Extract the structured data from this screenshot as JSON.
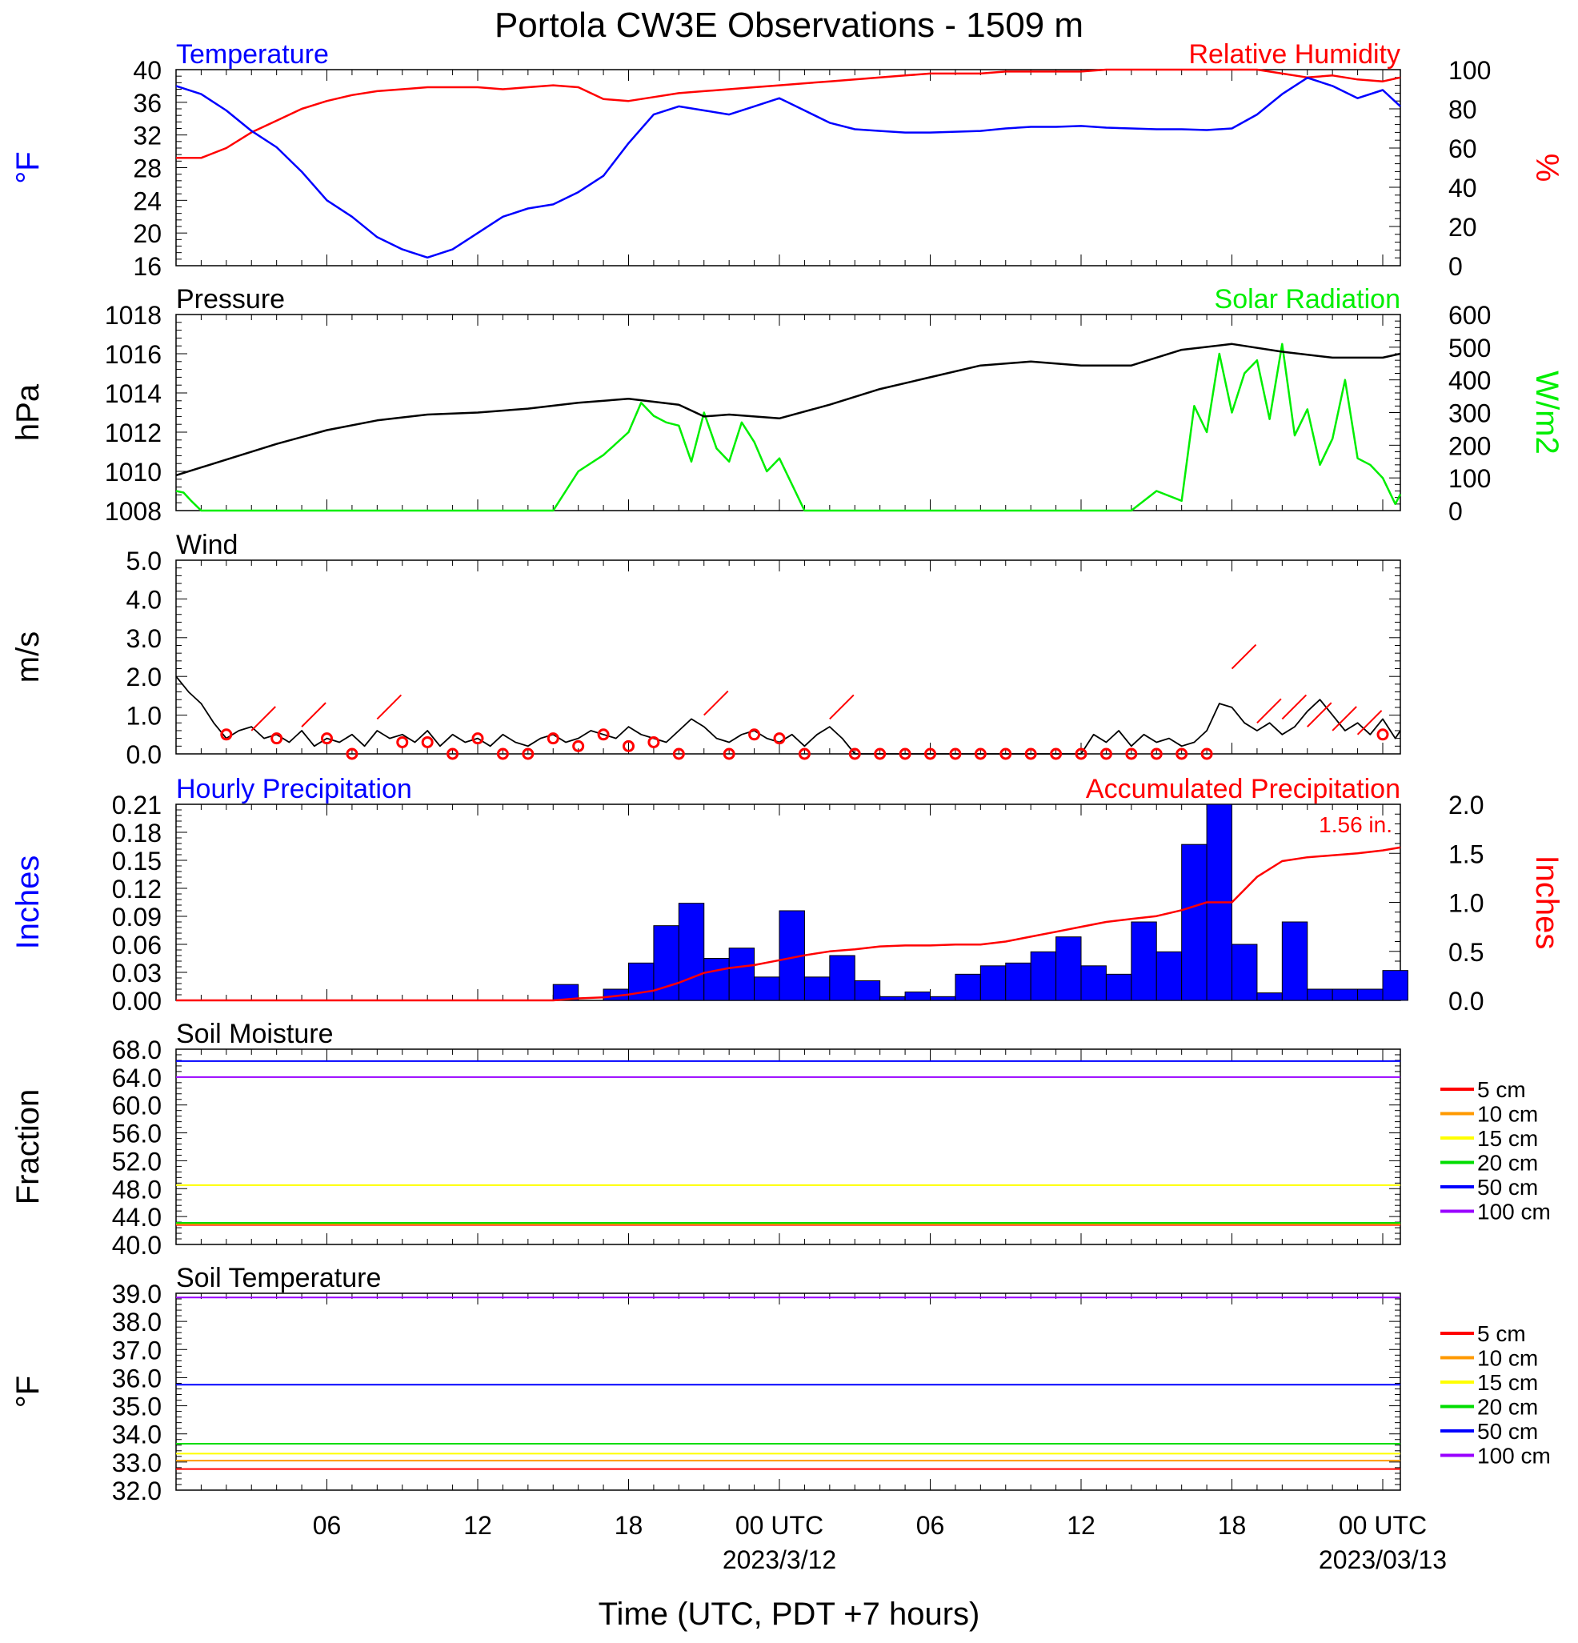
{
  "page": {
    "title": "Portola CW3E Observations - 1509 m",
    "xlabel": "Time (UTC, PDT +7 hours)",
    "x_ticks": [
      {
        "hour": 6,
        "label": "06"
      },
      {
        "hour": 12,
        "label": "12"
      },
      {
        "hour": 18,
        "label": "18"
      },
      {
        "hour": 24,
        "label": "00 UTC",
        "date": "2023/3/12"
      },
      {
        "hour": 30,
        "label": "06"
      },
      {
        "hour": 36,
        "label": "12"
      },
      {
        "hour": 42,
        "label": "18"
      },
      {
        "hour": 48,
        "label": "00 UTC",
        "date": "2023/03/13"
      }
    ]
  },
  "colors": {
    "temperature": "#0000ff",
    "humidity": "#ff0000",
    "pressure": "#000000",
    "solar": "#00ee00",
    "wind": "#000000",
    "wind_barb": "#ff0000",
    "hourly_precip": "#0000ff",
    "accum_precip": "#ff0000",
    "soil": {
      "5 cm": "#ff0000",
      "10 cm": "#ff9900",
      "15 cm": "#ffff00",
      "20 cm": "#00dd00",
      "50 cm": "#0000ff",
      "100 cm": "#9900ff"
    }
  },
  "chart_data": [
    {
      "type": "line",
      "panel": "temp-humidity",
      "x_range_hours": [
        0,
        48.7
      ],
      "left_title": "Temperature",
      "right_title": "Relative Humidity",
      "ylabel": "°F",
      "y2label": "%",
      "ylim": [
        16,
        40
      ],
      "y2lim": [
        0,
        100
      ],
      "y_ticks": [
        "16",
        "20",
        "24",
        "28",
        "32",
        "36",
        "40"
      ],
      "y2_ticks": [
        "0",
        "20",
        "40",
        "60",
        "80",
        "100"
      ],
      "series": [
        {
          "name": "Temperature",
          "axis": "left",
          "x": [
            0,
            1,
            2,
            3,
            4,
            5,
            6,
            7,
            8,
            9,
            10,
            11,
            12,
            13,
            14,
            15,
            16,
            17,
            18,
            19,
            20,
            21,
            22,
            23,
            24,
            25,
            26,
            27,
            28,
            29,
            30,
            31,
            32,
            33,
            34,
            35,
            36,
            37,
            38,
            39,
            40,
            41,
            42,
            43,
            44,
            45,
            46,
            47,
            48,
            48.7
          ],
          "y": [
            38,
            37,
            35,
            32.5,
            30.5,
            27.5,
            24,
            22,
            19.5,
            18,
            17,
            18,
            20,
            22,
            23,
            23.5,
            25,
            27,
            31,
            34.5,
            35.5,
            35,
            34.5,
            35.5,
            36.5,
            35,
            33.5,
            32.7,
            32.5,
            32.3,
            32.3,
            32.4,
            32.5,
            32.8,
            33,
            33,
            33.1,
            32.9,
            32.8,
            32.7,
            32.7,
            32.6,
            32.8,
            34.5,
            37,
            39,
            38,
            36.5,
            37.5,
            35.5
          ]
        },
        {
          "name": "Relative Humidity",
          "axis": "right",
          "x": [
            0,
            1,
            2,
            3,
            4,
            5,
            6,
            7,
            8,
            9,
            10,
            11,
            12,
            13,
            14,
            15,
            16,
            17,
            18,
            19,
            20,
            21,
            22,
            23,
            24,
            25,
            26,
            27,
            28,
            29,
            30,
            31,
            32,
            33,
            34,
            35,
            36,
            37,
            38,
            39,
            40,
            41,
            42,
            43,
            44,
            45,
            46,
            47,
            48,
            48.7
          ],
          "y": [
            55,
            55,
            60,
            68,
            74,
            80,
            84,
            87,
            89,
            90,
            91,
            91,
            91,
            90,
            91,
            92,
            91,
            85,
            84,
            86,
            88,
            89,
            90,
            91,
            92,
            93,
            94,
            95,
            96,
            97,
            98,
            98,
            98,
            99,
            99,
            99,
            99,
            100,
            100,
            100,
            100,
            100,
            100,
            100,
            98,
            96,
            97,
            95,
            94,
            96
          ]
        }
      ]
    },
    {
      "type": "line",
      "panel": "pressure-solar",
      "x_range_hours": [
        0,
        48.7
      ],
      "left_title": "Pressure",
      "right_title": "Solar Radiation",
      "ylabel": "hPa",
      "y2label": "W/m2",
      "ylim": [
        1008,
        1018
      ],
      "y2lim": [
        0,
        600
      ],
      "y_ticks": [
        "1008",
        "1010",
        "1012",
        "1014",
        "1016",
        "1018"
      ],
      "y2_ticks": [
        "0",
        "100",
        "200",
        "300",
        "400",
        "500",
        "600"
      ],
      "series": [
        {
          "name": "Pressure",
          "axis": "left",
          "x": [
            0,
            2,
            4,
            6,
            8,
            10,
            12,
            14,
            16,
            18,
            20,
            21,
            22,
            24,
            26,
            28,
            30,
            32,
            34,
            36,
            38,
            40,
            42,
            44,
            46,
            48,
            48.7
          ],
          "y": [
            1009.8,
            1010.6,
            1011.4,
            1012.1,
            1012.6,
            1012.9,
            1013,
            1013.2,
            1013.5,
            1013.7,
            1013.4,
            1012.8,
            1012.9,
            1012.7,
            1013.4,
            1014.2,
            1014.8,
            1015.4,
            1015.6,
            1015.4,
            1015.4,
            1016.2,
            1016.5,
            1016.1,
            1015.8,
            1015.8,
            1016
          ]
        },
        {
          "name": "Solar Radiation",
          "axis": "right",
          "x": [
            0,
            0.3,
            0.6,
            1,
            13,
            14,
            15,
            16,
            17,
            18,
            18.5,
            19,
            19.5,
            20,
            20.5,
            21,
            21.5,
            22,
            22.5,
            23,
            23.5,
            24,
            24.5,
            25,
            25.5,
            26,
            37,
            38,
            39,
            40,
            40.5,
            41,
            41.5,
            42,
            42.5,
            43,
            43.5,
            44,
            44.5,
            45,
            45.5,
            46,
            46.5,
            47,
            47.5,
            48,
            48.5,
            48.7
          ],
          "y": [
            60,
            55,
            30,
            0,
            0,
            0,
            0,
            120,
            170,
            240,
            330,
            290,
            270,
            260,
            150,
            300,
            190,
            150,
            270,
            210,
            120,
            160,
            80,
            0,
            0,
            0,
            0,
            0,
            60,
            30,
            320,
            240,
            480,
            300,
            420,
            460,
            280,
            510,
            230,
            310,
            140,
            220,
            400,
            160,
            140,
            100,
            20,
            50
          ]
        }
      ]
    },
    {
      "type": "line",
      "panel": "wind",
      "x_range_hours": [
        0,
        48.7
      ],
      "left_title": "Wind",
      "ylabel": "m/s",
      "ylim": [
        0,
        5
      ],
      "y_ticks": [
        "0.0",
        "1.0",
        "2.0",
        "3.0",
        "4.0",
        "5.0"
      ],
      "series": [
        {
          "name": "Wind",
          "axis": "left",
          "x": [
            0,
            0.5,
            1,
            1.5,
            2,
            2.5,
            3,
            3.5,
            4,
            4.5,
            5,
            5.5,
            6,
            6.5,
            7,
            7.5,
            8,
            8.5,
            9,
            9.5,
            10,
            10.5,
            11,
            11.5,
            12,
            12.5,
            13,
            13.5,
            14,
            14.5,
            15,
            15.5,
            16,
            16.5,
            17,
            17.5,
            18,
            18.5,
            19,
            19.5,
            20,
            20.5,
            21,
            21.5,
            22,
            22.5,
            23,
            23.5,
            24,
            24.5,
            25,
            25.5,
            26,
            26.5,
            27,
            36,
            36.5,
            37,
            37.5,
            38,
            38.5,
            39,
            39.5,
            40,
            40.5,
            41,
            41.5,
            42,
            42.5,
            43,
            43.5,
            44,
            44.5,
            45,
            45.5,
            46,
            46.5,
            47,
            47.5,
            48,
            48.5,
            48.7
          ],
          "y": [
            2,
            1.6,
            1.3,
            0.8,
            0.4,
            0.6,
            0.7,
            0.4,
            0.5,
            0.3,
            0.6,
            0.2,
            0.4,
            0.3,
            0.5,
            0.2,
            0.6,
            0.4,
            0.5,
            0.3,
            0.6,
            0.2,
            0.5,
            0.3,
            0.4,
            0.2,
            0.5,
            0.3,
            0.2,
            0.4,
            0.5,
            0.3,
            0.4,
            0.6,
            0.5,
            0.4,
            0.7,
            0.5,
            0.4,
            0.3,
            0.6,
            0.9,
            0.7,
            0.4,
            0.3,
            0.5,
            0.6,
            0.4,
            0.3,
            0.5,
            0.2,
            0.5,
            0.7,
            0.4,
            0,
            0,
            0.5,
            0.3,
            0.6,
            0.2,
            0.5,
            0.3,
            0.4,
            0.2,
            0.3,
            0.6,
            1.3,
            1.2,
            0.8,
            0.6,
            0.8,
            0.5,
            0.7,
            1.1,
            1.4,
            1,
            0.6,
            0.8,
            0.5,
            0.9,
            0.4,
            0.6
          ]
        }
      ],
      "barb_hours": [
        2,
        3,
        4,
        5,
        6,
        7,
        8,
        9,
        10,
        11,
        12,
        13,
        14,
        15,
        16,
        17,
        18,
        19,
        20,
        21,
        22,
        23,
        24,
        25,
        26,
        27,
        28,
        29,
        30,
        31,
        32,
        33,
        34,
        35,
        36,
        37,
        38,
        39,
        40,
        41,
        42,
        43,
        44,
        45,
        46,
        47,
        48
      ],
      "barb_speed_ms": [
        0.5,
        0.6,
        0.4,
        0.7,
        0.4,
        0,
        0.9,
        0.3,
        0.3,
        0,
        0.4,
        0,
        0,
        0.4,
        0.2,
        0.5,
        0.2,
        0.3,
        0,
        1,
        0,
        0.5,
        0.4,
        0,
        0.9,
        0,
        0,
        0,
        0,
        0,
        0,
        0,
        0,
        0,
        0,
        0,
        0,
        0,
        0,
        0,
        2.2,
        0.8,
        0.9,
        0.7,
        0.6,
        0.5,
        0.5
      ],
      "barb_calm": [
        true,
        false,
        true,
        false,
        true,
        true,
        false,
        true,
        true,
        true,
        true,
        true,
        true,
        true,
        true,
        true,
        true,
        true,
        true,
        false,
        true,
        true,
        true,
        true,
        false,
        true,
        true,
        true,
        true,
        true,
        true,
        true,
        true,
        true,
        true,
        true,
        true,
        true,
        true,
        true,
        false,
        false,
        false,
        false,
        false,
        false,
        true
      ]
    },
    {
      "type": "bar",
      "panel": "precipitation",
      "x_range_hours": [
        0,
        48.7
      ],
      "left_title": "Hourly Precipitation",
      "right_title": "Accumulated Precipitation",
      "ylabel": "Inches",
      "y2label": "Inches",
      "ylim": [
        0,
        0.21
      ],
      "y2lim": [
        0,
        2
      ],
      "y_ticks": [
        "0.00",
        "0.03",
        "0.06",
        "0.09",
        "0.12",
        "0.15",
        "0.18",
        "0.21"
      ],
      "y2_ticks": [
        "0.0",
        "0.5",
        "1.0",
        "1.5",
        "2.0"
      ],
      "total_label": "1.56 in.",
      "series": [
        {
          "name": "Hourly Precipitation",
          "axis": "left",
          "x": [
            15.5,
            16.5,
            17.5,
            18.5,
            19.5,
            20.5,
            21.5,
            22.5,
            23.5,
            24.5,
            25.5,
            26.5,
            27.5,
            28.5,
            29.5,
            30.5,
            31.5,
            32.5,
            33.5,
            34.5,
            35.5,
            36.5,
            37.5,
            38.5,
            39.5,
            40.5,
            41.5,
            42.5,
            43.5,
            44.5,
            45.5,
            46.5,
            47.5,
            48.5
          ],
          "values": [
            0.017,
            0,
            0.012,
            0.04,
            0.08,
            0.104,
            0.045,
            0.056,
            0.025,
            0.096,
            0.025,
            0.048,
            0.021,
            0.004,
            0.009,
            0.004,
            0.028,
            0.037,
            0.04,
            0.052,
            0.068,
            0.037,
            0.028,
            0.084,
            0.052,
            0.167,
            0.21,
            0.06,
            0.008,
            0.084,
            0.012,
            0.012,
            0.012,
            0.032
          ]
        },
        {
          "name": "Accumulated Precipitation",
          "axis": "right",
          "x": [
            0,
            15,
            16,
            17,
            18,
            19,
            20,
            21,
            22,
            23,
            24,
            25,
            26,
            27,
            28,
            29,
            30,
            31,
            32,
            33,
            34,
            35,
            36,
            37,
            38,
            39,
            40,
            41,
            42,
            43,
            44,
            45,
            46,
            47,
            48,
            48.7
          ],
          "y": [
            0,
            0,
            0.02,
            0.03,
            0.06,
            0.1,
            0.18,
            0.28,
            0.33,
            0.36,
            0.41,
            0.46,
            0.5,
            0.52,
            0.55,
            0.56,
            0.56,
            0.57,
            0.57,
            0.6,
            0.65,
            0.7,
            0.75,
            0.8,
            0.83,
            0.86,
            0.92,
            1.0,
            1.0,
            1.26,
            1.42,
            1.46,
            1.48,
            1.5,
            1.53,
            1.56
          ]
        }
      ]
    },
    {
      "type": "line",
      "panel": "soil-moisture",
      "x_range_hours": [
        0,
        48.7
      ],
      "left_title": "Soil Moisture",
      "ylabel": "Fraction",
      "ylim": [
        40,
        68
      ],
      "y_ticks": [
        "40.0",
        "44.0",
        "48.0",
        "52.0",
        "56.0",
        "60.0",
        "64.0",
        "68.0"
      ],
      "series": [
        {
          "name": "5 cm",
          "values_flat": 42.8
        },
        {
          "name": "10 cm",
          "values_flat": 42.9
        },
        {
          "name": "15 cm",
          "values_flat": 48.5
        },
        {
          "name": "20 cm",
          "values_flat": 43.1
        },
        {
          "name": "50 cm",
          "values_flat": 66.3
        },
        {
          "name": "100 cm",
          "values_flat": 64.0
        }
      ]
    },
    {
      "type": "line",
      "panel": "soil-temperature",
      "x_range_hours": [
        0,
        48.7
      ],
      "left_title": "Soil Temperature",
      "ylabel": "°F",
      "ylim": [
        32,
        39
      ],
      "y_ticks": [
        "32.0",
        "33.0",
        "34.0",
        "35.0",
        "36.0",
        "37.0",
        "38.0",
        "39.0"
      ],
      "series": [
        {
          "name": "5 cm",
          "values_flat": 32.75
        },
        {
          "name": "10 cm",
          "values_flat": 33.05
        },
        {
          "name": "15 cm",
          "values_flat": 33.3
        },
        {
          "name": "20 cm",
          "values_flat": 33.65
        },
        {
          "name": "50 cm",
          "values_flat": 35.75
        },
        {
          "name": "100 cm",
          "values_flat": 38.85
        }
      ]
    }
  ]
}
